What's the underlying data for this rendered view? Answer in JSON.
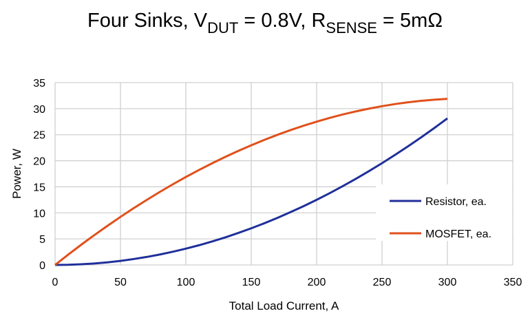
{
  "chart_data": {
    "type": "line",
    "title_parts": [
      {
        "text": "Four Sinks, V",
        "sub": false
      },
      {
        "text": "DUT",
        "sub": true
      },
      {
        "text": " = 0.8V, R",
        "sub": false
      },
      {
        "text": "SENSE",
        "sub": true
      },
      {
        "text": " = 5mΩ",
        "sub": false
      }
    ],
    "xlabel": "Total Load Current, A",
    "ylabel": "Power, W",
    "xlim": [
      0,
      350
    ],
    "ylim": [
      0,
      35
    ],
    "xticks": [
      0,
      50,
      100,
      150,
      200,
      250,
      300,
      350
    ],
    "yticks": [
      0,
      5,
      10,
      15,
      20,
      25,
      30,
      35
    ],
    "grid": true,
    "legend_position": "right",
    "x": [
      0,
      10,
      20,
      30,
      40,
      50,
      60,
      70,
      80,
      90,
      100,
      110,
      120,
      130,
      140,
      150,
      160,
      170,
      180,
      190,
      200,
      210,
      220,
      230,
      240,
      250,
      260,
      270,
      280,
      290,
      300
    ],
    "series": [
      {
        "name": "Resistor, ea.",
        "color": "#1f2f9a",
        "values": [
          0,
          0.03,
          0.13,
          0.28,
          0.5,
          0.78,
          1.13,
          1.53,
          2.0,
          2.53,
          3.13,
          3.78,
          4.5,
          5.28,
          6.13,
          7.03,
          8.0,
          9.03,
          10.13,
          11.28,
          12.5,
          13.78,
          15.13,
          16.53,
          18.0,
          19.53,
          21.13,
          22.78,
          24.5,
          26.28,
          28.13
        ]
      },
      {
        "name": "MOSFET, ea.",
        "color": "#e0501b",
        "values": [
          0,
          1.97,
          3.88,
          5.72,
          7.5,
          9.22,
          10.88,
          12.47,
          14.0,
          15.47,
          16.88,
          18.22,
          19.5,
          20.72,
          21.88,
          22.97,
          24.0,
          24.97,
          25.88,
          26.72,
          27.5,
          28.22,
          28.88,
          29.47,
          30.0,
          30.47,
          30.88,
          31.22,
          31.5,
          31.72,
          31.88
        ]
      }
    ]
  }
}
